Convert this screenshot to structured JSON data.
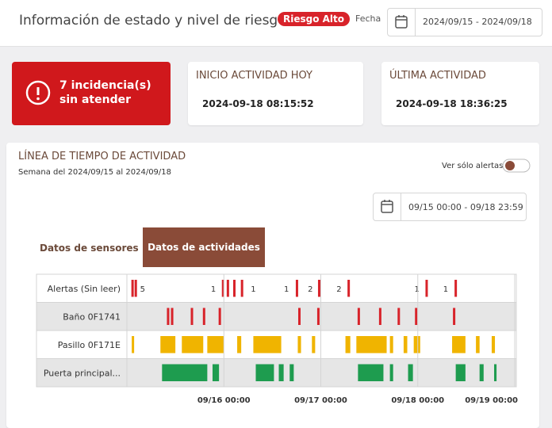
{
  "header": {
    "title": "Información de estado y nivel de riesgo",
    "badge": "Riesgo Alto",
    "date_label": "Fecha",
    "date_range": "2024/09/15 - 2024/09/18"
  },
  "cards": [
    {
      "text": "7 incidencia(s) sin atender"
    },
    {
      "title": "INICIO ACTIVIDAD HOY",
      "value": "2024-09-18 08:15:52"
    },
    {
      "title": "ÚLTIMA ACTIVIDAD",
      "value": "2024-09-18 18:36:25"
    }
  ],
  "timeline": {
    "title": "LÍNEA DE TIEMPO DE ACTIVIDAD",
    "subtitle": "Semana del 2024/09/15 al 2024/09/18",
    "toggle_label": "Ver sólo alertas",
    "range": "09/15 00:00 - 09/18 23:59",
    "tabs": [
      "Datos de sensores",
      "Datos de actividades"
    ],
    "xlim": [
      0,
      96
    ],
    "xticks": [
      {
        "value": 24,
        "label": "09/16 00:00"
      },
      {
        "value": 48,
        "label": "09/17 00:00"
      },
      {
        "value": 72,
        "label": "09/18 00:00"
      },
      {
        "value": 96,
        "label": "09/19 00:00"
      }
    ],
    "rows": [
      {
        "name": "Alertas (Sin leer)",
        "color": "#d8232a",
        "events": [
          1.4,
          2.2,
          23.8,
          25.0,
          26.6,
          28.5,
          42.1,
          47.6,
          54.9,
          74.2,
          81.4
        ],
        "counts": [
          {
            "hour": 3.9,
            "count": 5
          },
          {
            "hour": 21.4,
            "count": 1
          },
          {
            "hour": 31.3,
            "count": 1
          },
          {
            "hour": 39.5,
            "count": 1
          },
          {
            "hour": 45.4,
            "count": 2
          },
          {
            "hour": 52.5,
            "count": 2
          },
          {
            "hour": 71.8,
            "count": 1
          },
          {
            "hour": 78.9,
            "count": 1
          }
        ]
      },
      {
        "name": "Baño 0F1741",
        "color": "#d8232a",
        "events": [
          10.2,
          11.2,
          16.1,
          19.1,
          23.0,
          42.7,
          47.4,
          57.4,
          62.7,
          67.3,
          71.6,
          81.0
        ]
      },
      {
        "name": "Pasillo 0F171E",
        "color": "#f0b400",
        "intervals": [
          [
            1.2,
            1.6
          ],
          [
            8.3,
            12.0
          ],
          [
            13.6,
            18.9
          ],
          [
            19.9,
            24.0
          ],
          [
            27.3,
            28.3
          ],
          [
            31.3,
            38.2
          ],
          [
            42.3,
            43.1
          ],
          [
            45.8,
            46.6
          ],
          [
            54.1,
            55.3
          ],
          [
            56.8,
            64.3
          ],
          [
            65.1,
            65.9
          ],
          [
            68.5,
            69.4
          ],
          [
            71.0,
            72.6
          ],
          [
            80.5,
            83.8
          ],
          [
            86.4,
            87.3
          ],
          [
            90.3,
            91.1
          ]
        ]
      },
      {
        "name": "Puerta principal...",
        "color": "#1e9c4f",
        "intervals": [
          [
            8.7,
            19.9
          ],
          [
            21.2,
            22.8
          ],
          [
            31.9,
            36.4
          ],
          [
            37.6,
            38.8
          ],
          [
            40.3,
            41.3
          ],
          [
            57.2,
            63.5
          ],
          [
            65.1,
            65.9
          ],
          [
            69.6,
            70.8
          ],
          [
            81.4,
            83.8
          ],
          [
            87.3,
            88.3
          ],
          [
            90.9,
            91.5
          ]
        ]
      }
    ]
  }
}
